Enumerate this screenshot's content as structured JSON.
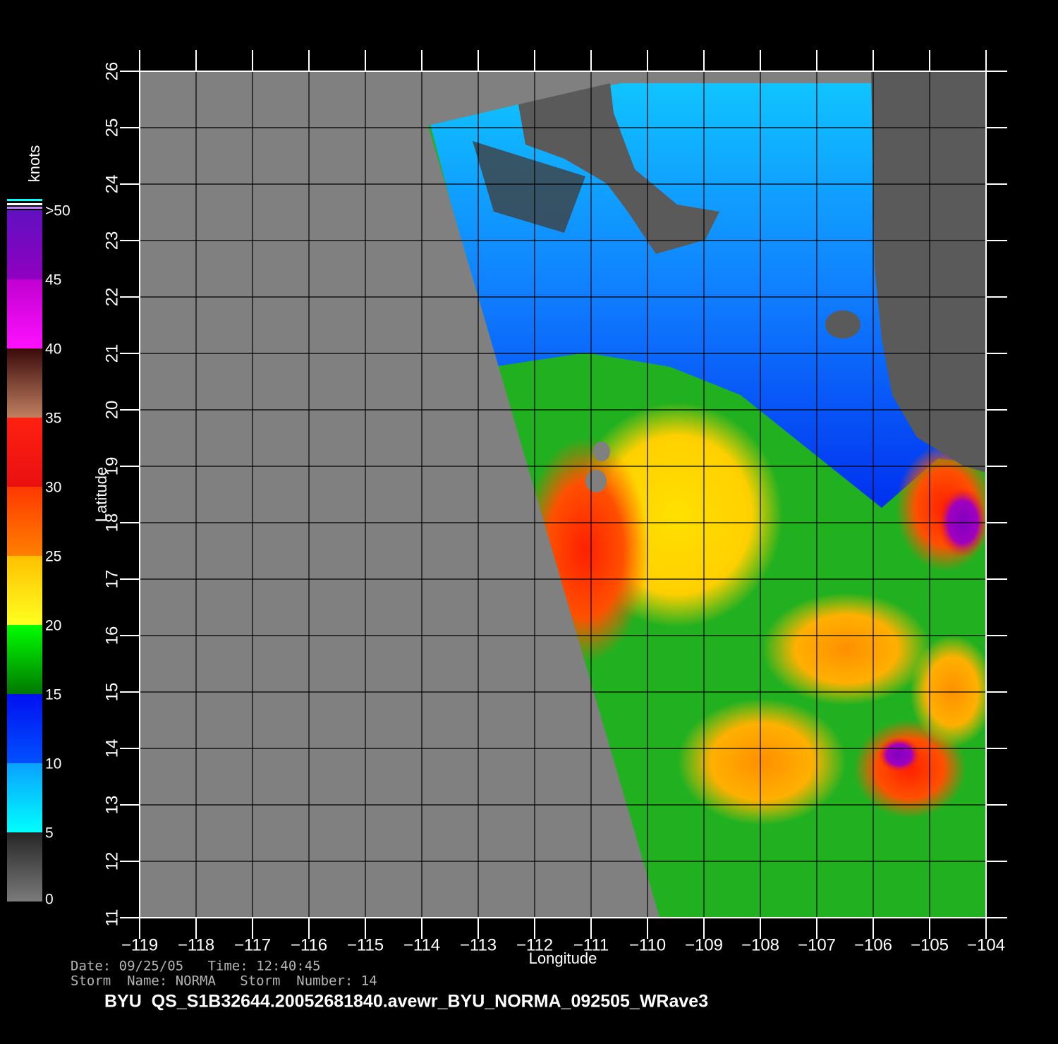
{
  "map": {
    "axes": {
      "xlabel": "Longitude",
      "ylabel": "Latitude",
      "xlim": [
        -119,
        -104
      ],
      "ylim": [
        11,
        26
      ],
      "xticks": [
        {
          "value": -119,
          "label": "−119"
        },
        {
          "value": -118,
          "label": "−118"
        },
        {
          "value": -117,
          "label": "−117"
        },
        {
          "value": -116,
          "label": "−116"
        },
        {
          "value": -115,
          "label": "−115"
        },
        {
          "value": -114,
          "label": "−114"
        },
        {
          "value": -113,
          "label": "−113"
        },
        {
          "value": -112,
          "label": "−112"
        },
        {
          "value": -111,
          "label": "−111"
        },
        {
          "value": -110,
          "label": "−110"
        },
        {
          "value": -109,
          "label": "−109"
        },
        {
          "value": -108,
          "label": "−108"
        },
        {
          "value": -107,
          "label": "−107"
        },
        {
          "value": -106,
          "label": "−106"
        },
        {
          "value": -105,
          "label": "−105"
        },
        {
          "value": -104,
          "label": "−104"
        }
      ],
      "yticks": [
        11,
        12,
        13,
        14,
        15,
        16,
        17,
        18,
        19,
        20,
        21,
        22,
        23,
        24,
        25,
        26
      ],
      "grid": true
    },
    "colorbar": {
      "title": "knots",
      "lim": [
        0,
        50
      ],
      "ticks": [
        0,
        5,
        10,
        15,
        20,
        25,
        30,
        35,
        40,
        45,
        {
          "value": 50,
          "label": ">50"
        }
      ],
      "colors": [
        [
          "#7a7a7a",
          "#262626"
        ],
        [
          "#00ffff",
          "#0aa0ff"
        ],
        [
          "#0050ff",
          "#0010f0"
        ],
        [
          "#007800",
          "#00ff00"
        ],
        [
          "#ffff20",
          "#ffc000"
        ],
        [
          "#ff8000",
          "#ff3800"
        ],
        [
          "#e81010",
          "#ff2010"
        ],
        [
          "#c08060",
          "#3a0a0a"
        ],
        [
          "#ff10ff",
          "#c000d0"
        ],
        [
          "#9000c0",
          "#6010c0"
        ]
      ]
    },
    "info": {
      "date_line": "Date: 09/25/05   Time: 12:40:45",
      "storm_line": "Storm  Name: NORMA   Storm  Number: 14",
      "file_title": "BYU  QS_S1B32644.20052681840.avewr_BYU_NORMA_092505_WRave3"
    }
  }
}
